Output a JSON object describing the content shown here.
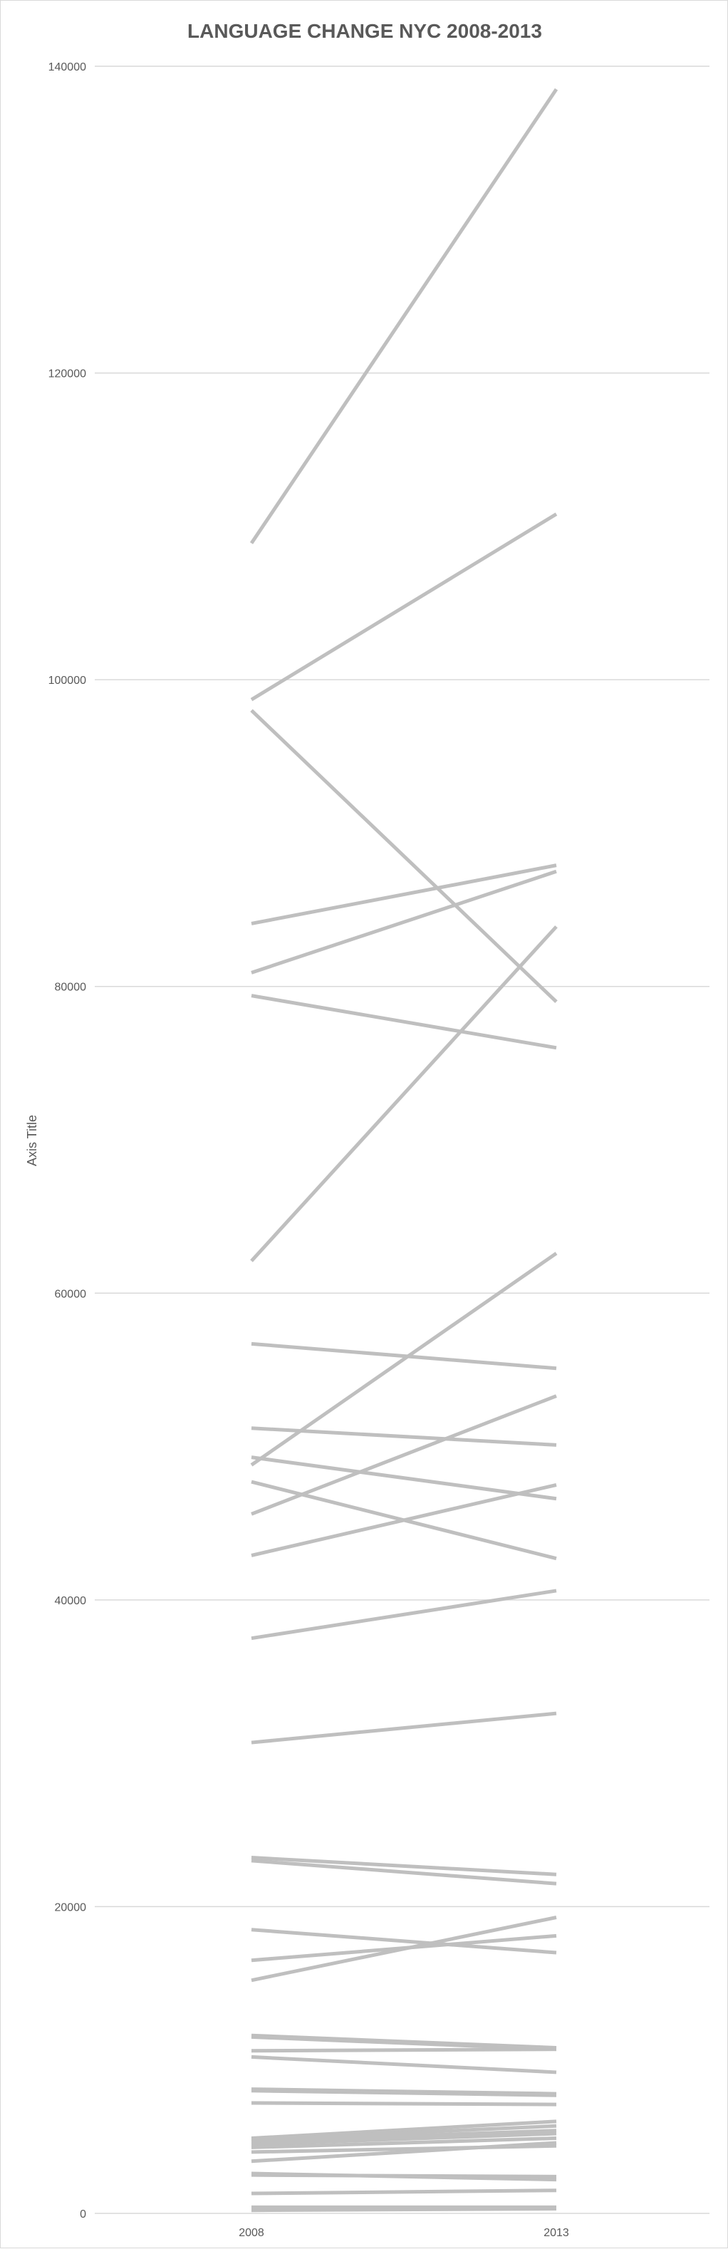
{
  "chart_data": {
    "type": "line",
    "title": "LANGUAGE CHANGE NYC 2008-2013",
    "xlabel": "",
    "ylabel": "Axis Title",
    "categories": [
      "2008",
      "2013"
    ],
    "ylim": [
      0,
      140000
    ],
    "yticks": [
      0,
      20000,
      40000,
      60000,
      80000,
      100000,
      120000,
      140000
    ],
    "grid": true,
    "legend": "none",
    "line_color": "#bfbfbf",
    "series": [
      {
        "values": [
          108900,
          138500
        ]
      },
      {
        "values": [
          98700,
          110800
        ]
      },
      {
        "values": [
          98000,
          79000
        ]
      },
      {
        "values": [
          84100,
          87900
        ]
      },
      {
        "values": [
          80900,
          87500
        ]
      },
      {
        "values": [
          79400,
          76000
        ]
      },
      {
        "values": [
          62100,
          83900
        ]
      },
      {
        "values": [
          56700,
          55100
        ]
      },
      {
        "values": [
          51200,
          50100
        ]
      },
      {
        "values": [
          49300,
          46600
        ]
      },
      {
        "values": [
          48800,
          62600
        ]
      },
      {
        "values": [
          47700,
          42700
        ]
      },
      {
        "values": [
          45600,
          53300
        ]
      },
      {
        "values": [
          42900,
          47500
        ]
      },
      {
        "values": [
          37500,
          40600
        ]
      },
      {
        "values": [
          30700,
          32600
        ]
      },
      {
        "values": [
          23200,
          22100
        ]
      },
      {
        "values": [
          23000,
          21500
        ]
      },
      {
        "values": [
          18500,
          17000
        ]
      },
      {
        "values": [
          16500,
          18100
        ]
      },
      {
        "values": [
          15200,
          19300
        ]
      },
      {
        "values": [
          11600,
          10800
        ]
      },
      {
        "values": [
          11500,
          10700
        ]
      },
      {
        "values": [
          10600,
          10700
        ]
      },
      {
        "values": [
          10200,
          9200
        ]
      },
      {
        "values": [
          8100,
          7800
        ]
      },
      {
        "values": [
          8000,
          7700
        ]
      },
      {
        "values": [
          7200,
          7100
        ]
      },
      {
        "values": [
          4900,
          6000
        ]
      },
      {
        "values": [
          4800,
          5700
        ]
      },
      {
        "values": [
          4700,
          5400
        ]
      },
      {
        "values": [
          4500,
          5200
        ]
      },
      {
        "values": [
          4300,
          4900
        ]
      },
      {
        "values": [
          4000,
          4400
        ]
      },
      {
        "values": [
          3400,
          4600
        ]
      },
      {
        "values": [
          2600,
          2200
        ]
      },
      {
        "values": [
          2500,
          2400
        ]
      },
      {
        "values": [
          1300,
          1500
        ]
      },
      {
        "values": [
          400,
          400
        ]
      },
      {
        "values": [
          200,
          300
        ]
      }
    ]
  }
}
